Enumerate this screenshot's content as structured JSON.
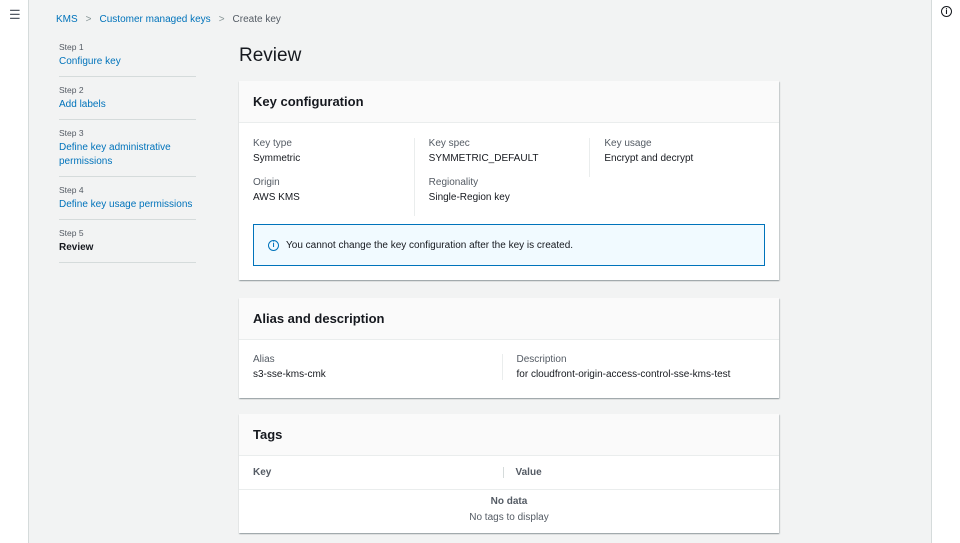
{
  "breadcrumb": [
    "KMS",
    "Customer managed keys",
    "Create key"
  ],
  "steps": [
    {
      "n": "Step 1",
      "t": "Configure key"
    },
    {
      "n": "Step 2",
      "t": "Add labels"
    },
    {
      "n": "Step 3",
      "t": "Define key administrative permissions"
    },
    {
      "n": "Step 4",
      "t": "Define key usage permissions"
    },
    {
      "n": "Step 5",
      "t": "Review"
    }
  ],
  "title": "Review",
  "keyconfig": {
    "heading": "Key configuration",
    "key_type": {
      "label": "Key type",
      "value": "Symmetric"
    },
    "origin": {
      "label": "Origin",
      "value": "AWS KMS"
    },
    "key_spec": {
      "label": "Key spec",
      "value": "SYMMETRIC_DEFAULT"
    },
    "regionality": {
      "label": "Regionality",
      "value": "Single-Region key"
    },
    "key_usage": {
      "label": "Key usage",
      "value": "Encrypt and decrypt"
    },
    "alert": "You cannot change the key configuration after the key is created."
  },
  "alias": {
    "heading": "Alias and description",
    "alias": {
      "label": "Alias",
      "value": "s3-sse-kms-cmk"
    },
    "description": {
      "label": "Description",
      "value": "for cloudfront-origin-access-control-sse-kms-test"
    }
  },
  "tags": {
    "heading": "Tags",
    "columns": [
      "Key",
      "Value"
    ],
    "empty_title": "No data",
    "empty_text": "No tags to display"
  },
  "colors": {
    "link": "#0073bb",
    "background": "#f2f3f3"
  }
}
